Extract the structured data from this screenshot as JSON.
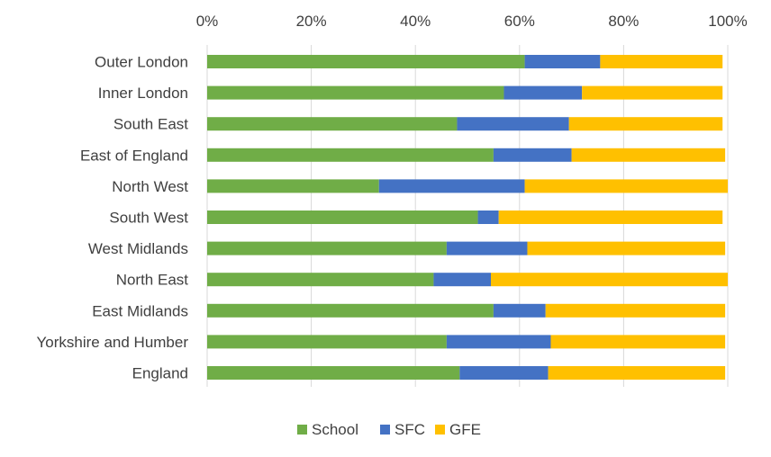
{
  "chart_data": {
    "type": "bar",
    "orientation": "horizontal",
    "stacked": "percent",
    "categories": [
      "Outer London",
      "Inner London",
      "South East",
      "East of England",
      "North West",
      "South West",
      "West Midlands",
      "North East",
      "East Midlands",
      "Yorkshire and Humber",
      "England"
    ],
    "series": [
      {
        "name": "School",
        "color": "#70ad47",
        "values": [
          61,
          57,
          48,
          55,
          33,
          52,
          46,
          43.5,
          55,
          46,
          48.5
        ]
      },
      {
        "name": "SFC",
        "color": "#4472c4",
        "values": [
          14.5,
          15,
          21.5,
          15,
          28,
          4,
          15.5,
          11,
          10,
          20,
          17
        ]
      },
      {
        "name": "GFE",
        "color": "#ffc000",
        "values": [
          23.5,
          27,
          29.5,
          29.5,
          39,
          43,
          38,
          45.5,
          34.5,
          33.5,
          34
        ]
      }
    ],
    "x_ticks": [
      "0%",
      "20%",
      "40%",
      "60%",
      "80%",
      "100%"
    ],
    "xlim": [
      0,
      100
    ],
    "x_axis_position": "top",
    "grid": true,
    "legend_position": "bottom"
  }
}
